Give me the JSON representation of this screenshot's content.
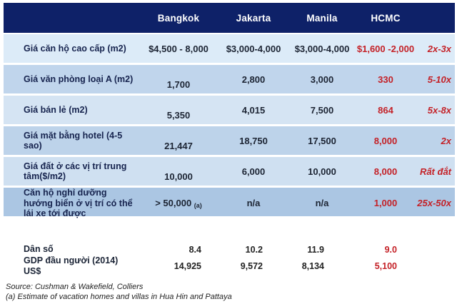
{
  "chart_data": {
    "type": "table",
    "title": "",
    "columns": [
      "",
      "Bangkok",
      "Jakarta",
      "Manila",
      "HCMC",
      ""
    ],
    "header": {
      "bangkok": "Bangkok",
      "jakarta": "Jakarta",
      "manila": "Manila",
      "hcmc": "HCMC"
    },
    "rows": [
      {
        "label": "Giá căn hộ cao cấp (m2)",
        "bangkok": "$4,500 - 8,000",
        "jakarta": "$3,000-4,000",
        "manila": "$3,000-4,000",
        "hcmc": "$1,600 -2,000",
        "ratio": "2x-3x"
      },
      {
        "label": "Giá văn phòng loại A (m2)",
        "bangkok": "1,700",
        "jakarta": "2,800",
        "manila": "3,000",
        "hcmc": "330",
        "ratio": "5-10x"
      },
      {
        "label": "Giá bán lẻ (m2)",
        "bangkok": "5,350",
        "jakarta": "4,015",
        "manila": "7,500",
        "hcmc": "864",
        "ratio": "5x-8x"
      },
      {
        "label": "Giá mặt bằng hotel (4-5 sao)",
        "bangkok": "21,447",
        "jakarta": "18,750",
        "manila": "17,500",
        "hcmc": "8,000",
        "ratio": "2x"
      },
      {
        "label": "Giá đất ở các vị trí trung tâm($/m2)",
        "bangkok": "10,000",
        "jakarta": "6,000",
        "manila": "10,000",
        "hcmc": "8,000",
        "ratio": "Rất đắt"
      },
      {
        "label": "Căn hộ nghỉ dưỡng hướng biển ở vị trí có thể lái xe tới được",
        "bangkok": "> 50,000",
        "bangkok_note": "(a)",
        "jakarta": "n/a",
        "manila": "n/a",
        "hcmc": "1,000",
        "ratio": "25x-50x"
      }
    ],
    "stats_rows": [
      {
        "label": "Dân số",
        "bangkok": "8.4",
        "jakarta": "10.2",
        "manila": "11.9",
        "hcmc": "9.0"
      },
      {
        "label": "GDP đầu người (2014) US$",
        "bangkok": "14,925",
        "jakarta": "9,572",
        "manila": "8,134",
        "hcmc": "5,100"
      }
    ],
    "notes": {
      "source": "Source: Cushman & Wakefield, Colliers",
      "footnote": "(a) Estimate of vacation homes and villas in Hua Hin and Pattaya"
    },
    "layout_hints": {
      "header_bg": "#0e2168",
      "accent_red": "#c42127",
      "highlight_column": "HCMC"
    }
  }
}
